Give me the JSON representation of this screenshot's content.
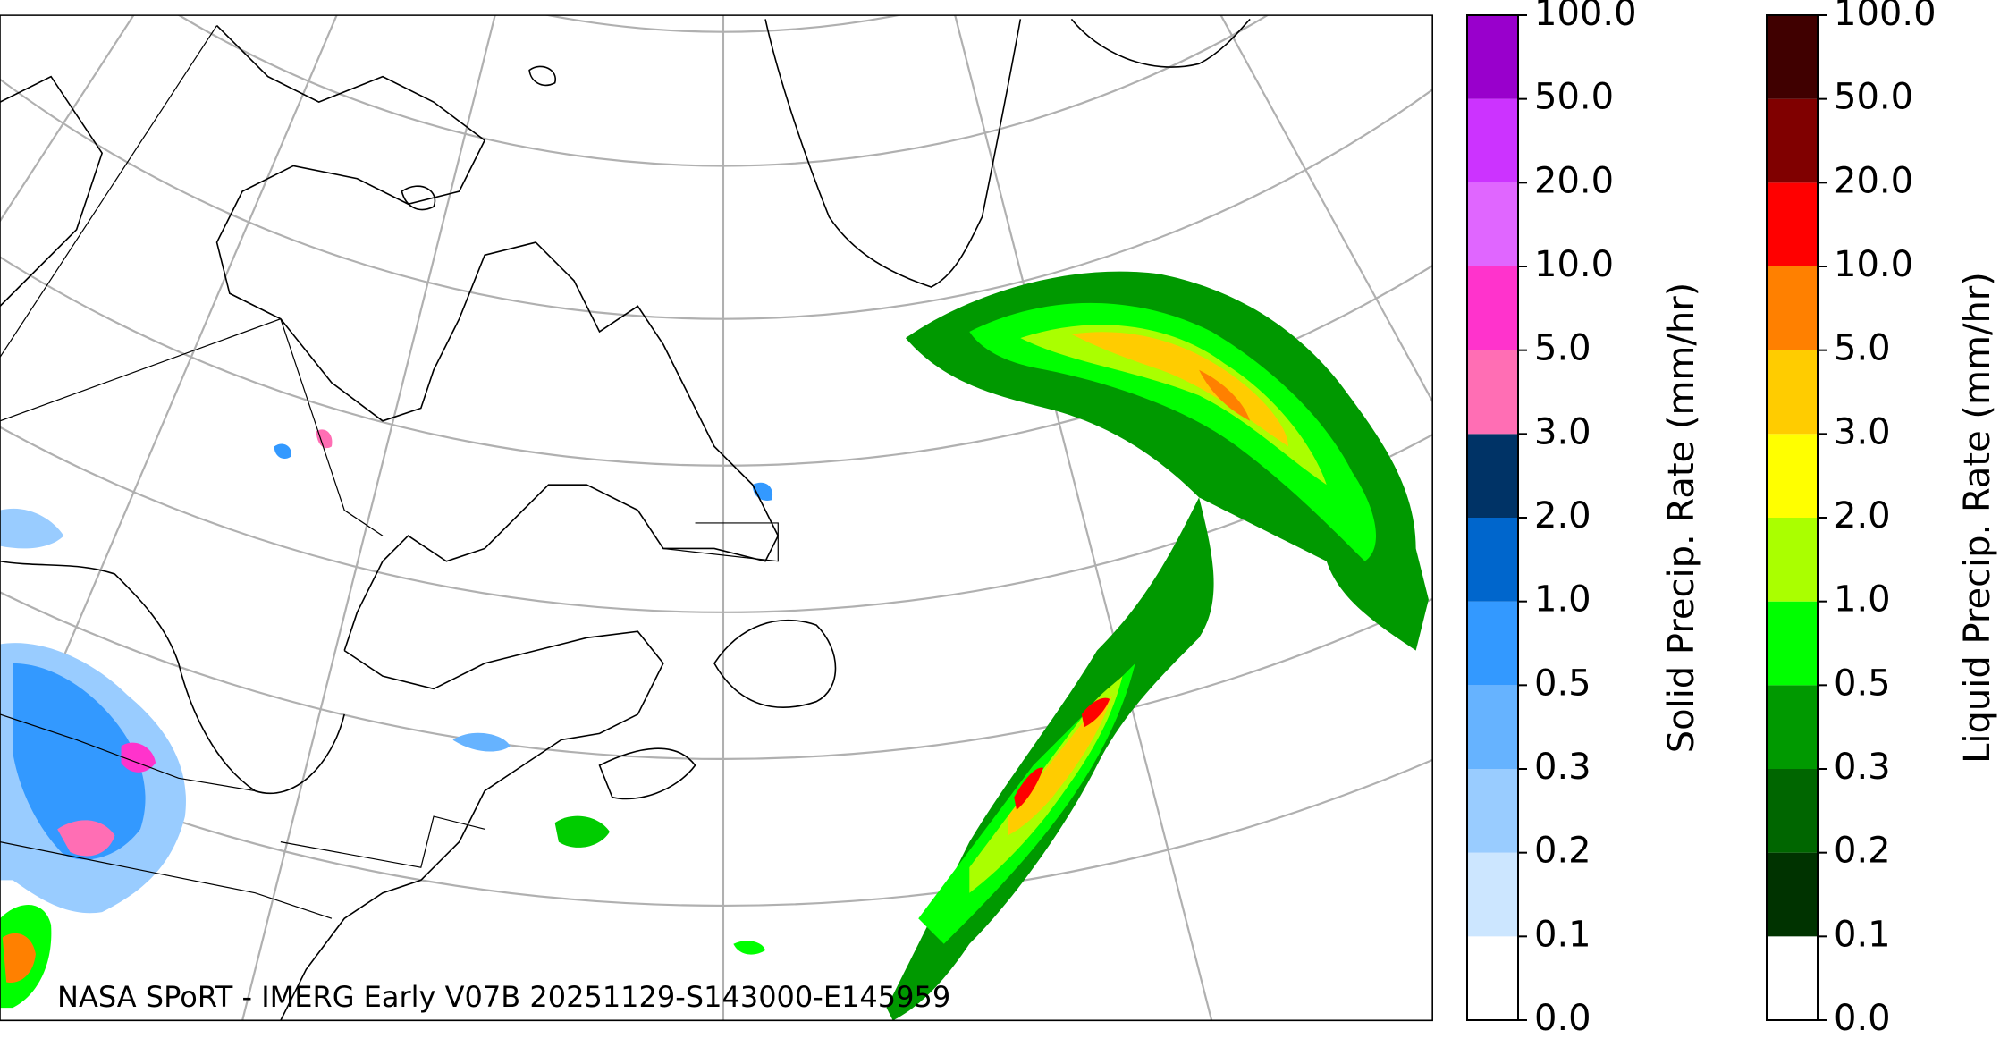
{
  "map": {
    "annotation": "NASA SPoRT - IMERG Early V07B 20251129-S143000-E145959"
  },
  "colorbars": [
    {
      "label": "Solid Precip. Rate (mm/hr)",
      "ticks": [
        {
          "value": 0,
          "label": "0.0"
        },
        {
          "value": 0.1,
          "label": "0.1"
        },
        {
          "value": 0.2,
          "label": "0.2"
        },
        {
          "value": 0.3,
          "label": "0.3"
        },
        {
          "value": 0.5,
          "label": "0.5"
        },
        {
          "value": 1,
          "label": "1.0"
        },
        {
          "value": 2,
          "label": "2.0"
        },
        {
          "value": 3,
          "label": "3.0"
        },
        {
          "value": 5,
          "label": "5.0"
        },
        {
          "value": 10,
          "label": "10.0"
        },
        {
          "value": 20,
          "label": "20.0"
        },
        {
          "value": 50,
          "label": "50.0"
        },
        {
          "value": 100,
          "label": "100.0"
        }
      ],
      "colors": [
        "#ffffff",
        "#cce6ff",
        "#99ccff",
        "#66b3ff",
        "#3399ff",
        "#0066cc",
        "#003366",
        "#ff6eb4",
        "#ff33cc",
        "#e066ff",
        "#cc33ff",
        "#9900cc"
      ]
    },
    {
      "label": "Liquid Precip. Rate (mm/hr)",
      "ticks": [
        {
          "value": 0,
          "label": "0.0"
        },
        {
          "value": 0.1,
          "label": "0.1"
        },
        {
          "value": 0.2,
          "label": "0.2"
        },
        {
          "value": 0.3,
          "label": "0.3"
        },
        {
          "value": 0.5,
          "label": "0.5"
        },
        {
          "value": 1,
          "label": "1.0"
        },
        {
          "value": 2,
          "label": "2.0"
        },
        {
          "value": 3,
          "label": "3.0"
        },
        {
          "value": 5,
          "label": "5.0"
        },
        {
          "value": 10,
          "label": "10.0"
        },
        {
          "value": 20,
          "label": "20.0"
        },
        {
          "value": 50,
          "label": "50.0"
        },
        {
          "value": 100,
          "label": "100.0"
        }
      ],
      "colors": [
        "#ffffff",
        "#003300",
        "#006600",
        "#009900",
        "#00ff00",
        "#aaff00",
        "#ffff00",
        "#ffcc00",
        "#ff8000",
        "#ff0000",
        "#800000",
        "#400000"
      ]
    }
  ]
}
